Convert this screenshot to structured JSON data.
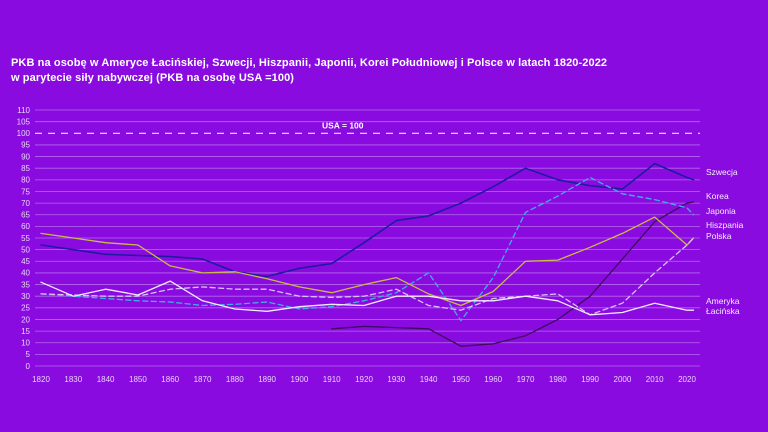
{
  "title": {
    "line1": "PKB na osobę w Ameryce Łacińskiej, Szwecji, Hiszpanii, Japonii, Korei Południowej i Polsce w latach 1820-2022",
    "line2": "w parytecie siły nabywczej (PKB na osobę USA =100)"
  },
  "colors": {
    "background": "#8A0BE0",
    "grid": "#E1C8F8",
    "axis_text": "#E8D2FA",
    "title_text": "#FFFFFF",
    "reference_line": "#F0E2FC"
  },
  "chart_data": {
    "type": "line",
    "x": [
      1820,
      1830,
      1840,
      1850,
      1860,
      1870,
      1880,
      1890,
      1900,
      1910,
      1920,
      1930,
      1940,
      1950,
      1960,
      1970,
      1980,
      1990,
      2000,
      2010,
      2020,
      2022
    ],
    "x_ticks": [
      1820,
      1830,
      1840,
      1850,
      1860,
      1870,
      1880,
      1890,
      1900,
      1910,
      1920,
      1930,
      1940,
      1950,
      1960,
      1970,
      1980,
      1990,
      2000,
      2010,
      2020
    ],
    "y_ticks": [
      0,
      5,
      10,
      15,
      20,
      25,
      30,
      35,
      40,
      45,
      50,
      55,
      60,
      65,
      70,
      75,
      80,
      85,
      90,
      95,
      100,
      105,
      110
    ],
    "ylim": [
      0,
      110
    ],
    "grid": "horizontal-only",
    "legend_position": "right-edge-labels",
    "reference_line": {
      "label": "USA = 100",
      "value": 100,
      "style": "dashed"
    },
    "series": [
      {
        "name": "Szwecja",
        "color": "#1E1BA0",
        "style": "solid",
        "values": [
          52,
          50,
          48,
          47.5,
          47,
          46,
          40.5,
          38.5,
          42,
          44,
          53,
          62.5,
          64.5,
          70,
          77,
          85,
          80,
          77.5,
          76,
          87,
          81,
          80
        ]
      },
      {
        "name": "Korea",
        "color": "#3C0C5A",
        "style": "solid",
        "values": [
          null,
          null,
          null,
          null,
          null,
          null,
          null,
          null,
          null,
          16,
          17,
          16.5,
          16,
          8.5,
          9.5,
          13,
          20,
          30,
          46,
          62,
          70,
          70.5
        ]
      },
      {
        "name": "Japonia",
        "color": "#41AEE8",
        "style": "dashed",
        "values": [
          31,
          30,
          29,
          28,
          27.5,
          26,
          26.5,
          27.5,
          24.5,
          25.5,
          28,
          31.5,
          40,
          19.5,
          38,
          66,
          73,
          81,
          74,
          71.5,
          68,
          65
        ]
      },
      {
        "name": "Hiszpania",
        "color": "#C9BC45",
        "style": "solid",
        "values": [
          57,
          55,
          53,
          52,
          43,
          40,
          40.5,
          37.5,
          34,
          31.5,
          35,
          38,
          31,
          26,
          32,
          45,
          45.5,
          51,
          57,
          64,
          52,
          55
        ]
      },
      {
        "name": "Polska",
        "color": "#D8C0F4",
        "style": "dashed",
        "values": [
          31,
          30.5,
          30,
          30,
          33,
          34,
          33,
          33,
          30,
          29.5,
          30,
          33,
          26,
          24,
          29,
          30,
          31,
          22,
          27,
          40,
          52,
          55
        ]
      },
      {
        "name": "Ameryka Łacińska",
        "color": "#F3EBFC",
        "style": "solid",
        "values": [
          36,
          30,
          33,
          30.5,
          36.5,
          28,
          24.5,
          23.5,
          25.5,
          26.5,
          26,
          30,
          30,
          28,
          28,
          30,
          28,
          22,
          23,
          27,
          24,
          24
        ]
      }
    ]
  }
}
